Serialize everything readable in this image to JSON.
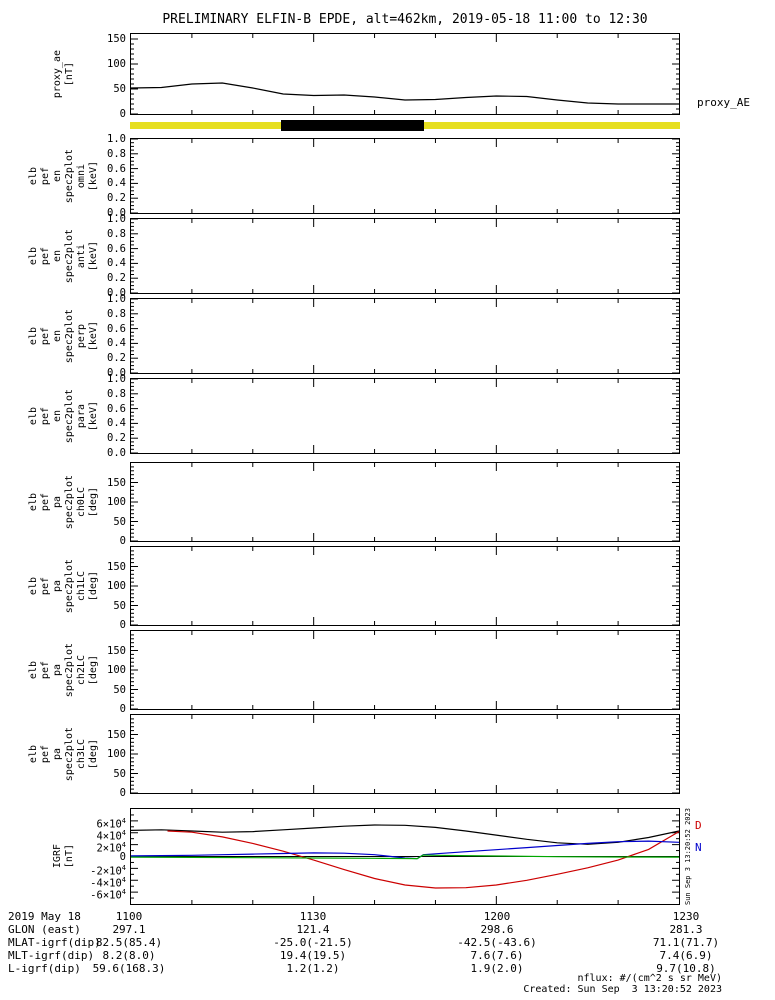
{
  "title": "PRELIMINARY ELFIN-B EPDE, alt=462km, 2019-05-18 11:00 to 12:30",
  "footer": {
    "nflux_units": "nflux: #/(cm^2 s sr MeV)",
    "created": "Created: Sun Sep  3 13:20:52 2023"
  },
  "annotations": {
    "proxy_right_label": "proxy_AE",
    "igrf_side_timestamp": "Sun Sep 3 13:20:52 2023",
    "igrf_labels": [
      {
        "text": "D",
        "color": "#cc0000",
        "value": 52000
      },
      {
        "text": "N",
        "color": "#0000cc",
        "value": 15000
      }
    ]
  },
  "x_axis": {
    "start_time": "1100",
    "end_time": "1230",
    "minutes_range": [
      0,
      90
    ],
    "major_tick_minutes": [
      0,
      30,
      60,
      90
    ],
    "minor_step_minutes": 10
  },
  "availability_bar": {
    "segments": [
      {
        "from": 0.0,
        "to": 0.274,
        "color": "#e6df21"
      },
      {
        "from": 0.274,
        "to": 0.534,
        "color": "#000000"
      },
      {
        "from": 0.534,
        "to": 1.0,
        "color": "#e6df21"
      }
    ]
  },
  "chart_data": [
    {
      "name": "proxy_ae",
      "type": "line",
      "ylabel_words": [
        "proxy_ae",
        "[nT]"
      ],
      "ylim": [
        0,
        160
      ],
      "yminor": 10,
      "yticks": [
        {
          "v": 0,
          "label": "0"
        },
        {
          "v": 50,
          "label": "50"
        },
        {
          "v": 100,
          "label": "100"
        },
        {
          "v": 150,
          "label": "150"
        }
      ],
      "series": [
        {
          "name": "proxy_AE",
          "color": "#000000",
          "x": [
            0,
            5,
            10,
            15,
            20,
            25,
            30,
            35,
            40,
            45,
            50,
            55,
            60,
            65,
            70,
            75,
            80,
            85,
            90
          ],
          "y": [
            52,
            53,
            60,
            62,
            52,
            40,
            37,
            38,
            34,
            28,
            29,
            33,
            36,
            35,
            28,
            22,
            20,
            20,
            20
          ]
        }
      ]
    },
    {
      "name": "elb_pef_en_spec2plot_omni",
      "type": "spectrogram-empty",
      "ylabel_words": [
        "elb",
        "pef",
        "en",
        "spec2plot",
        "omni",
        "[keV]"
      ],
      "ylim": [
        0,
        1
      ],
      "yminor": 0.05,
      "yticks": [
        {
          "v": 0.0,
          "label": "0.0"
        },
        {
          "v": 0.2,
          "label": "0.2"
        },
        {
          "v": 0.4,
          "label": "0.4"
        },
        {
          "v": 0.6,
          "label": "0.6"
        },
        {
          "v": 0.8,
          "label": "0.8"
        },
        {
          "v": 1.0,
          "label": "1.0"
        }
      ]
    },
    {
      "name": "elb_pef_en_spec2plot_anti",
      "type": "spectrogram-empty",
      "ylabel_words": [
        "elb",
        "pef",
        "en",
        "spec2plot",
        "anti",
        "[keV]"
      ],
      "ylim": [
        0,
        1
      ],
      "yminor": 0.05,
      "yticks": [
        {
          "v": 0.0,
          "label": "0.0"
        },
        {
          "v": 0.2,
          "label": "0.2"
        },
        {
          "v": 0.4,
          "label": "0.4"
        },
        {
          "v": 0.6,
          "label": "0.6"
        },
        {
          "v": 0.8,
          "label": "0.8"
        },
        {
          "v": 1.0,
          "label": "1.0"
        }
      ]
    },
    {
      "name": "elb_pef_en_spec2plot_perp",
      "type": "spectrogram-empty",
      "ylabel_words": [
        "elb",
        "pef",
        "en",
        "spec2plot",
        "perp",
        "[keV]"
      ],
      "ylim": [
        0,
        1
      ],
      "yminor": 0.05,
      "yticks": [
        {
          "v": 0.0,
          "label": "0.0"
        },
        {
          "v": 0.2,
          "label": "0.2"
        },
        {
          "v": 0.4,
          "label": "0.4"
        },
        {
          "v": 0.6,
          "label": "0.6"
        },
        {
          "v": 0.8,
          "label": "0.8"
        },
        {
          "v": 1.0,
          "label": "1.0"
        }
      ]
    },
    {
      "name": "elb_pef_en_spec2plot_para",
      "type": "spectrogram-empty",
      "ylabel_words": [
        "elb",
        "pef",
        "en",
        "spec2plot",
        "para",
        "[keV]"
      ],
      "ylim": [
        0,
        1
      ],
      "yminor": 0.05,
      "yticks": [
        {
          "v": 0.0,
          "label": "0.0"
        },
        {
          "v": 0.2,
          "label": "0.2"
        },
        {
          "v": 0.4,
          "label": "0.4"
        },
        {
          "v": 0.6,
          "label": "0.6"
        },
        {
          "v": 0.8,
          "label": "0.8"
        },
        {
          "v": 1.0,
          "label": "1.0"
        }
      ]
    },
    {
      "name": "elb_pef_pa_spec2plot_ch0LC",
      "type": "spectrogram-empty",
      "ylabel_words": [
        "elb",
        "pef",
        "pa",
        "spec2plot",
        "ch0LC",
        "[deg]"
      ],
      "ylim": [
        0,
        200
      ],
      "yminor": 10,
      "yticks": [
        {
          "v": 0,
          "label": "0"
        },
        {
          "v": 50,
          "label": "50"
        },
        {
          "v": 100,
          "label": "100"
        },
        {
          "v": 150,
          "label": "150"
        }
      ]
    },
    {
      "name": "elb_pef_pa_spec2plot_ch1LC",
      "type": "spectrogram-empty",
      "ylabel_words": [
        "elb",
        "pef",
        "pa",
        "spec2plot",
        "ch1LC",
        "[deg]"
      ],
      "ylim": [
        0,
        200
      ],
      "yminor": 10,
      "yticks": [
        {
          "v": 0,
          "label": "0"
        },
        {
          "v": 50,
          "label": "50"
        },
        {
          "v": 100,
          "label": "100"
        },
        {
          "v": 150,
          "label": "150"
        }
      ]
    },
    {
      "name": "elb_pef_pa_spec2plot_ch2LC",
      "type": "spectrogram-empty",
      "ylabel_words": [
        "elb",
        "pef",
        "pa",
        "spec2plot",
        "ch2LC",
        "[deg]"
      ],
      "ylim": [
        0,
        200
      ],
      "yminor": 10,
      "yticks": [
        {
          "v": 0,
          "label": "0"
        },
        {
          "v": 50,
          "label": "50"
        },
        {
          "v": 100,
          "label": "100"
        },
        {
          "v": 150,
          "label": "150"
        }
      ]
    },
    {
      "name": "elb_pef_pa_spec2plot_ch3LC",
      "type": "spectrogram-empty",
      "ylabel_words": [
        "elb",
        "pef",
        "pa",
        "spec2plot",
        "ch3LC",
        "[deg]"
      ],
      "ylim": [
        0,
        200
      ],
      "yminor": 10,
      "yticks": [
        {
          "v": 0,
          "label": "0"
        },
        {
          "v": 50,
          "label": "50"
        },
        {
          "v": 100,
          "label": "100"
        },
        {
          "v": 150,
          "label": "150"
        }
      ]
    },
    {
      "name": "igrf",
      "type": "line",
      "ylabel_words": [
        "IGRF",
        "[nT]"
      ],
      "ylim": [
        -80000,
        80000
      ],
      "yminor": 10000,
      "zero_line": true,
      "yticks": [
        {
          "v": 60000,
          "label": "6×10^4"
        },
        {
          "v": 40000,
          "label": "4×10^4"
        },
        {
          "v": 20000,
          "label": "2×10^4"
        },
        {
          "v": 0,
          "label": "0"
        },
        {
          "v": -20000,
          "label": "-2×10^4"
        },
        {
          "v": -40000,
          "label": "-4×10^4"
        },
        {
          "v": -60000,
          "label": "-6×10^4"
        }
      ],
      "series": [
        {
          "name": "igrf_total",
          "color": "#000000",
          "x": [
            0,
            5,
            10,
            15,
            20,
            25,
            30,
            35,
            40,
            45,
            50,
            55,
            60,
            65,
            70,
            75,
            80,
            85,
            90
          ],
          "y": [
            44000,
            45000,
            43000,
            41000,
            42000,
            45000,
            48000,
            51000,
            53000,
            52500,
            49000,
            43000,
            36000,
            29000,
            23000,
            20500,
            24000,
            32000,
            43000
          ]
        },
        {
          "name": "igrf_D",
          "color": "#cc0000",
          "x": [
            6,
            10,
            15,
            20,
            25,
            30,
            35,
            40,
            45,
            50,
            55,
            60,
            65,
            70,
            75,
            80,
            85,
            90
          ],
          "y": [
            43000,
            41000,
            33000,
            22000,
            9000,
            -6000,
            -22000,
            -37000,
            -48000,
            -53000,
            -52500,
            -48000,
            -40000,
            -30000,
            -19000,
            -6000,
            12000,
            42000
          ]
        },
        {
          "name": "igrf_N",
          "color": "#0000cc",
          "x": [
            0,
            5,
            10,
            15,
            20,
            25,
            30,
            35,
            40,
            45,
            47,
            48,
            50,
            55,
            60,
            65,
            70,
            75,
            80,
            85,
            90
          ],
          "y": [
            1000,
            1500,
            2000,
            3000,
            4000,
            5000,
            6000,
            5500,
            3000,
            -2500,
            -3500,
            3000,
            4500,
            8000,
            11500,
            15000,
            18500,
            22000,
            25000,
            26000,
            24000
          ]
        },
        {
          "name": "igrf_E",
          "color": "#00a800",
          "x": [
            0,
            10,
            20,
            30,
            40,
            45,
            47,
            48,
            50,
            60,
            70,
            80,
            90
          ],
          "y": [
            -1000,
            -1500,
            -2000,
            -2500,
            -3000,
            -3300,
            -3500,
            2500,
            2000,
            800,
            -300,
            -900,
            -1000
          ]
        }
      ]
    }
  ],
  "ephemeris": {
    "rows": [
      {
        "label": "2019 May 18",
        "values": [
          "1100",
          "1130",
          "1200",
          "1230"
        ]
      },
      {
        "label": "GLON (east)",
        "values": [
          "297.1",
          "121.4",
          "298.6",
          "281.3"
        ]
      },
      {
        "label": "MLAT-igrf(dip)",
        "values": [
          "82.5(85.4)",
          "-25.0(-21.5)",
          "-42.5(-43.6)",
          "71.1(71.7)"
        ]
      },
      {
        "label": "MLT-igrf(dip)",
        "values": [
          "8.2(8.0)",
          "19.4(19.5)",
          "7.6(7.6)",
          "7.4(6.9)"
        ]
      },
      {
        "label": "L-igrf(dip)",
        "values": [
          "59.6(168.3)",
          "1.2(1.2)",
          "1.9(2.0)",
          "9.7(10.8)"
        ]
      }
    ]
  }
}
